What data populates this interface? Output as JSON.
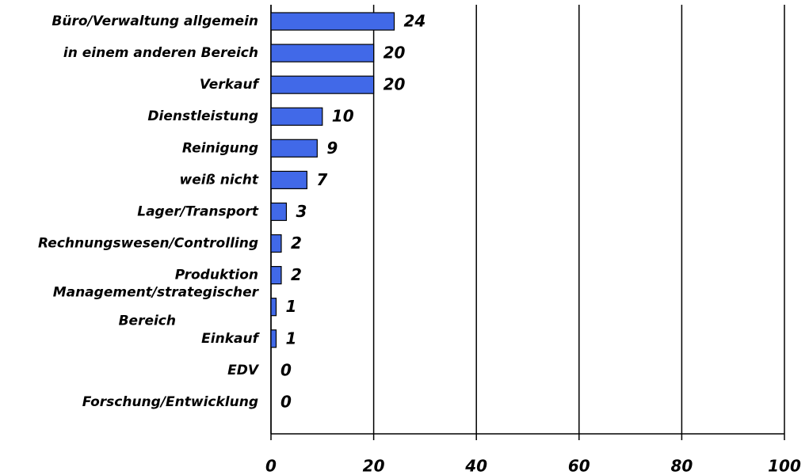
{
  "chart_data": {
    "type": "hbar",
    "categories": [
      "Büro/Verwaltung allgemein",
      "in einem anderen Bereich",
      "Verkauf",
      "Dienstleistung",
      "Reinigung",
      "weiß nicht",
      "Lager/Transport",
      "Rechnungswesen/Controlling",
      "Produktion",
      "Management/strategischer Bereich",
      "Einkauf",
      "EDV",
      "Forschung/Entwicklung"
    ],
    "values": [
      24,
      20,
      20,
      10,
      9,
      7,
      3,
      2,
      2,
      1,
      1,
      0,
      0
    ],
    "color": "#4169e8",
    "xlim": [
      0,
      100
    ],
    "xticks": [
      0,
      20,
      40,
      60,
      80,
      100
    ],
    "grid": true
  }
}
